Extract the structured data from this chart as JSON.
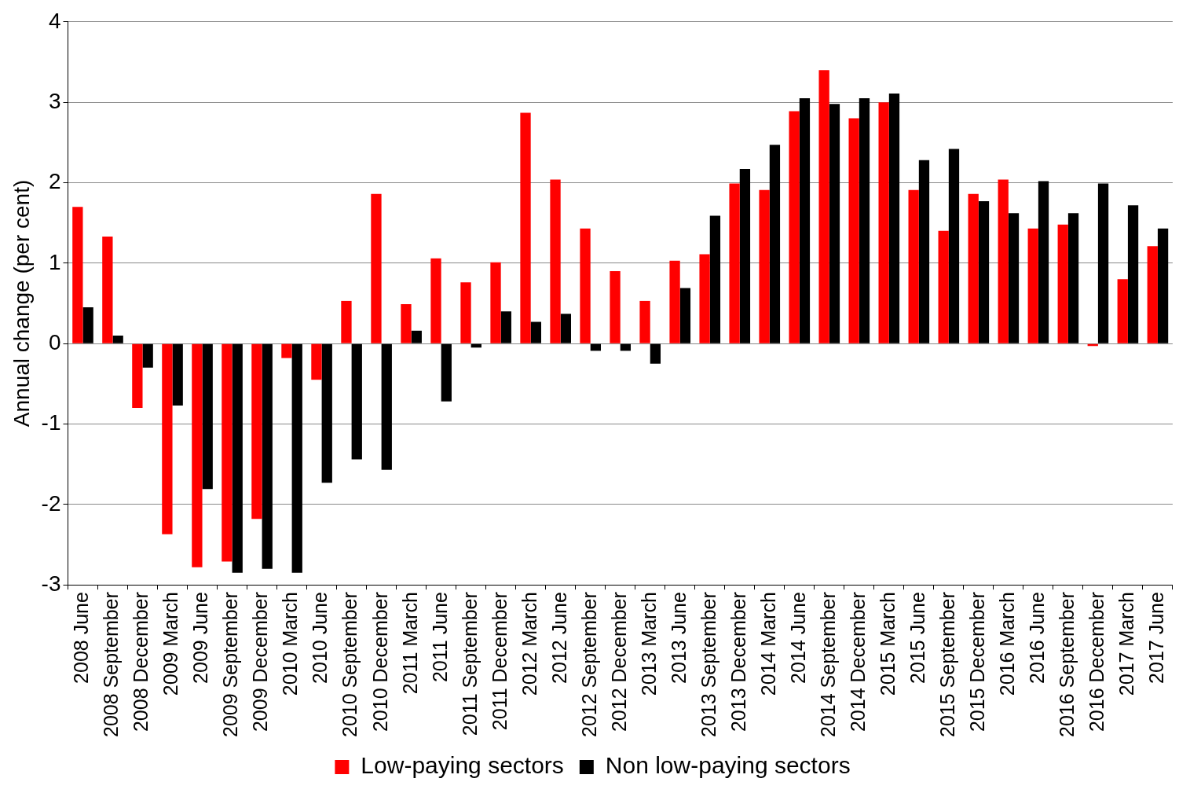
{
  "chart_data": {
    "type": "bar",
    "ylabel": "Annual change (per cent)",
    "categories": [
      "2008 June",
      "2008 September",
      "2008 December",
      "2009 March",
      "2009 June",
      "2009 September",
      "2009 December",
      "2010 March",
      "2010 June",
      "2010 September",
      "2010 December",
      "2011 March",
      "2011 June",
      "2011 September",
      "2011 December",
      "2012 March",
      "2012 June",
      "2012 September",
      "2012 December",
      "2013 March",
      "2013 June",
      "2013 September",
      "2013 December",
      "2014 March",
      "2014 June",
      "2014 September",
      "2014 December",
      "2015 March",
      "2015 June",
      "2015 September",
      "2015 December",
      "2016 March",
      "2016 June",
      "2016 September",
      "2016 December",
      "2017 March",
      "2017 June"
    ],
    "series": [
      {
        "name": "Low-paying sectors",
        "color": "#ff0000",
        "values": [
          1.7,
          1.33,
          -0.8,
          -2.37,
          -2.78,
          -2.71,
          -2.18,
          -0.18,
          -0.45,
          0.53,
          1.86,
          0.49,
          1.06,
          0.76,
          1.01,
          2.87,
          2.04,
          1.43,
          0.9,
          0.53,
          1.03,
          1.11,
          1.99,
          1.91,
          2.89,
          3.4,
          2.8,
          3.0,
          1.91,
          1.4,
          1.86,
          2.04,
          1.43,
          1.48,
          -0.03,
          0.8,
          1.21
        ]
      },
      {
        "name": "Non low-paying sectors",
        "color": "#000000",
        "values": [
          0.45,
          0.1,
          -0.3,
          -0.77,
          -1.81,
          -2.85,
          -2.8,
          -2.85,
          -1.73,
          -1.44,
          -1.57,
          0.16,
          -0.72,
          -0.05,
          0.4,
          0.27,
          0.37,
          -0.09,
          -0.09,
          -0.25,
          0.69,
          1.59,
          2.17,
          2.47,
          3.05,
          2.98,
          3.05,
          3.11,
          2.28,
          2.42,
          1.77,
          1.62,
          2.02,
          1.62,
          1.99,
          1.72,
          1.43
        ]
      }
    ],
    "ylim": [
      -3,
      4
    ],
    "yticks": [
      -3,
      -2,
      -1,
      0,
      1,
      2,
      3,
      4
    ],
    "grid": "y",
    "legend": "bottom"
  }
}
